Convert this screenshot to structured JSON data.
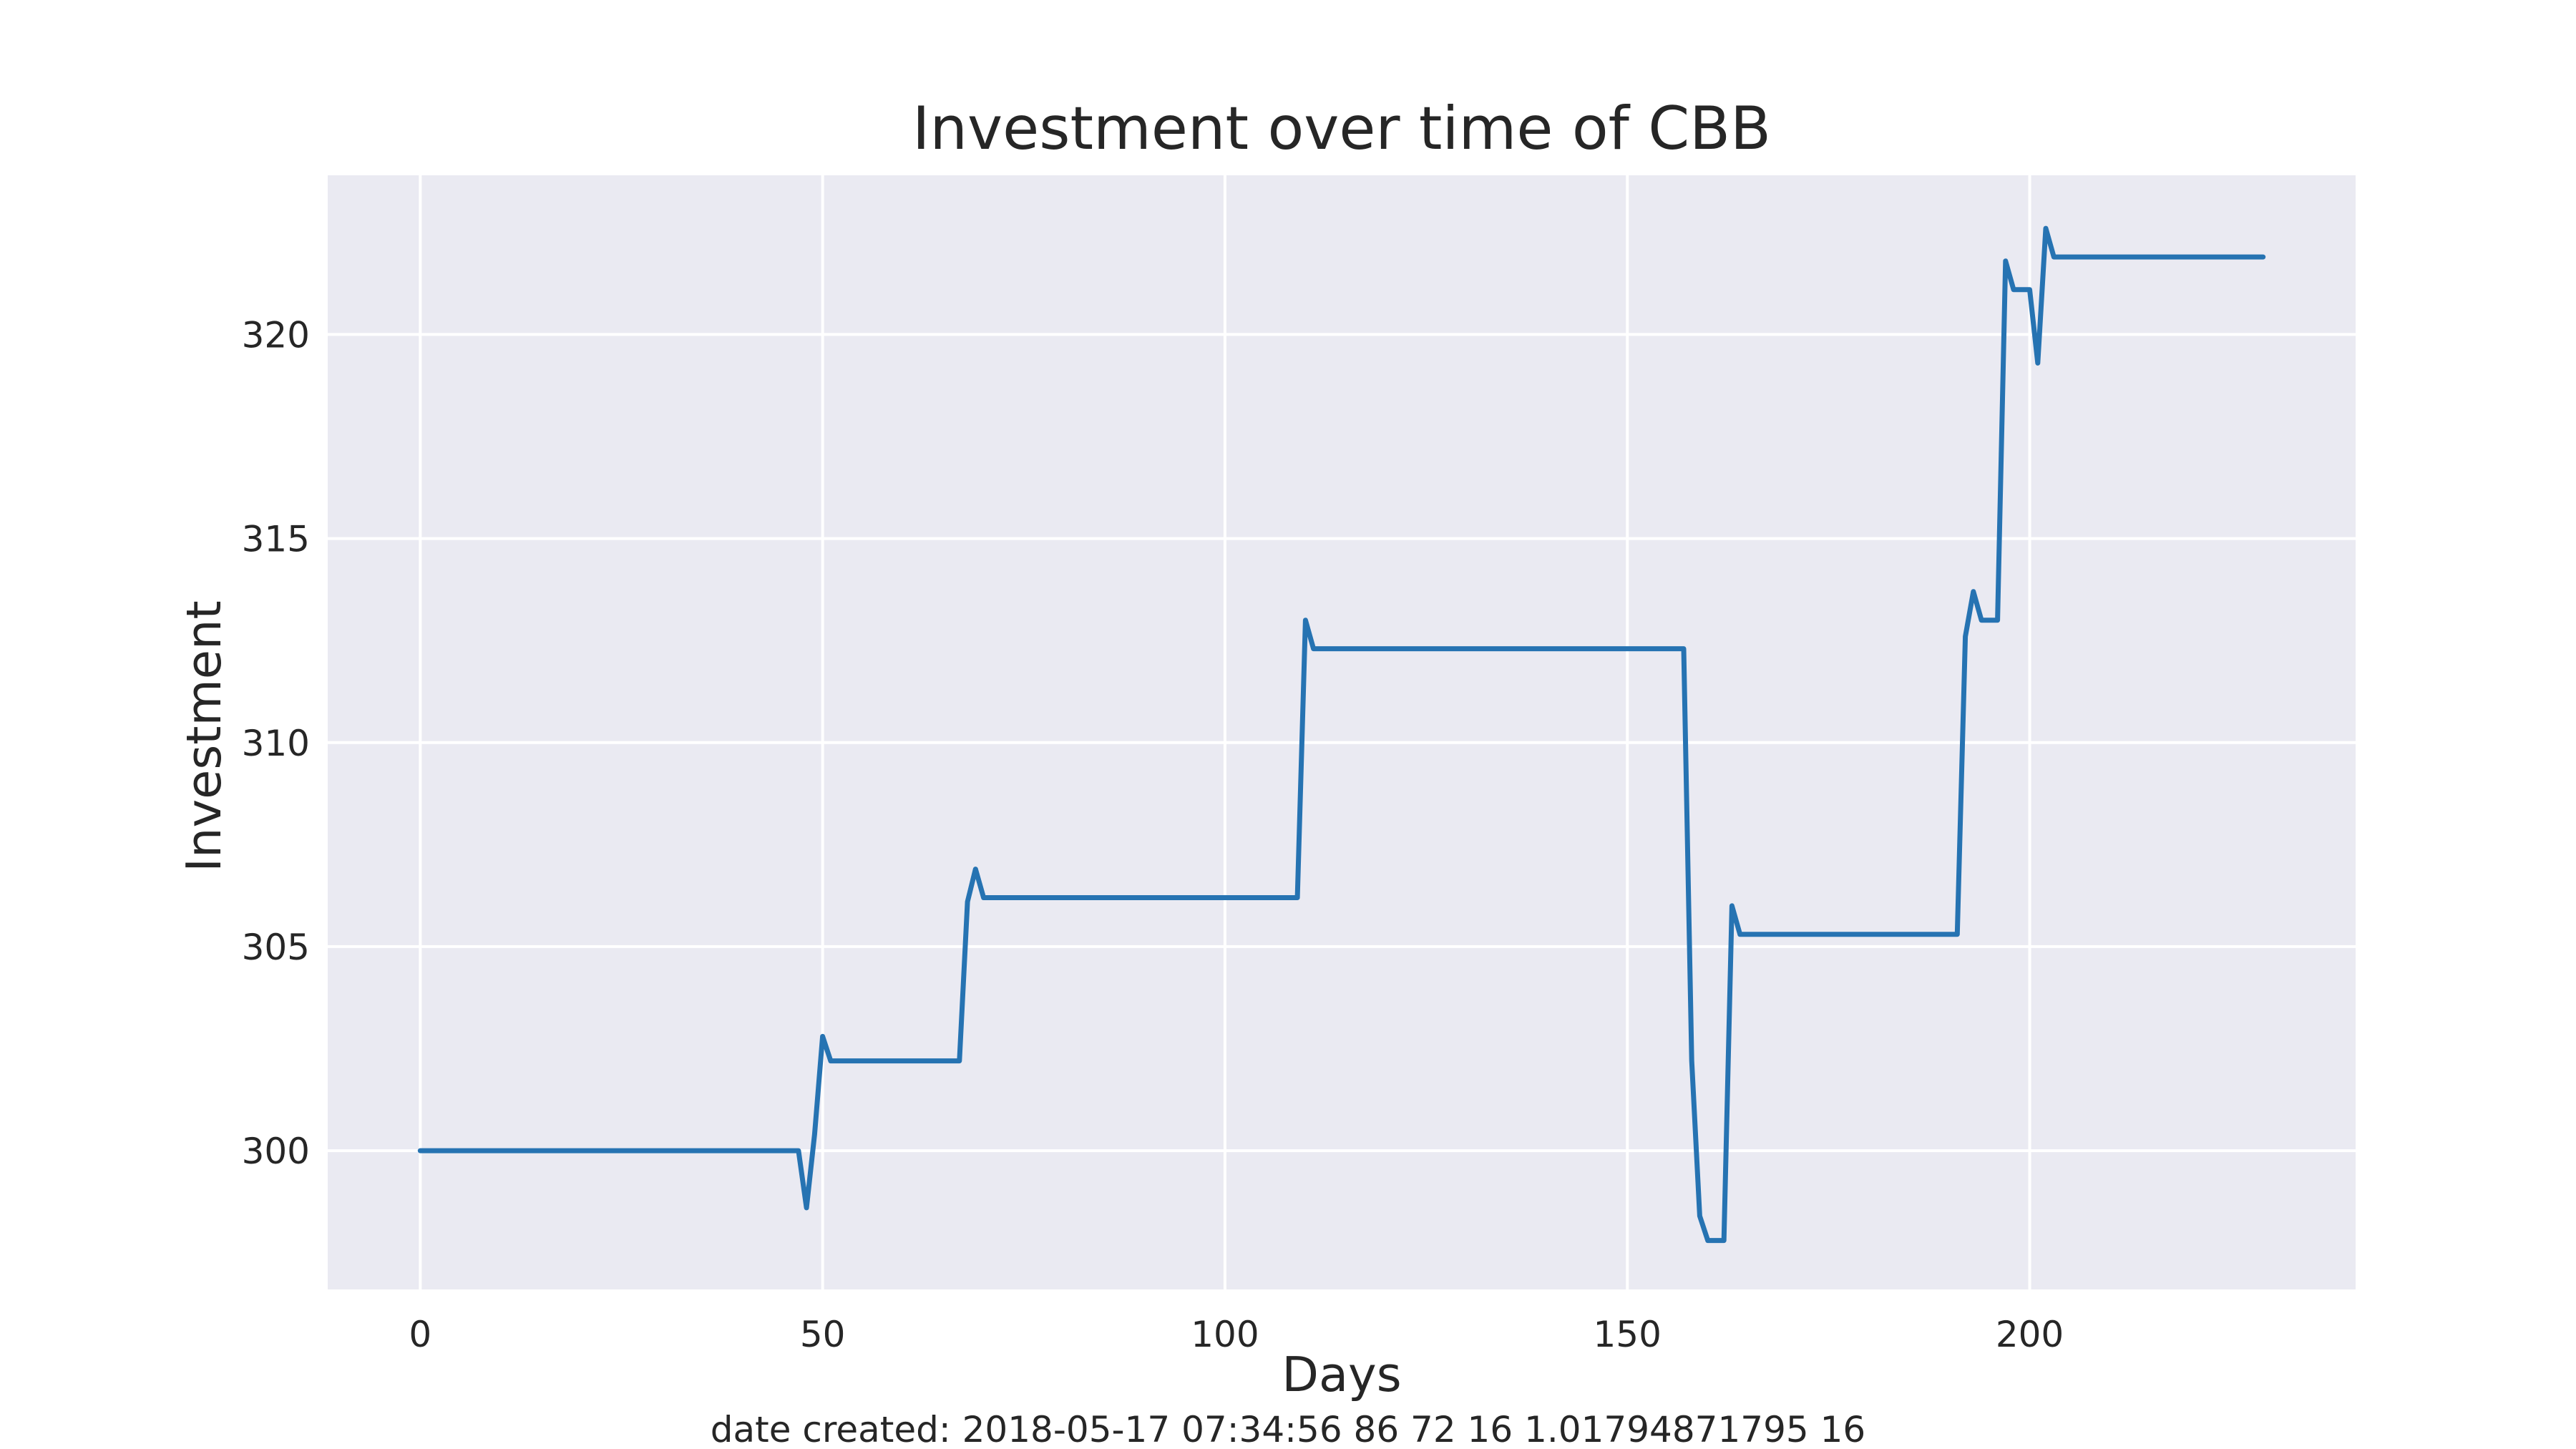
{
  "chart_data": {
    "type": "line",
    "title": "Investment over time of CBB",
    "xlabel": "Days",
    "ylabel": "Investment",
    "footer": "date created: 2018-05-17 07:34:56 86 72 16 1.01794871795 16",
    "xlim": [
      -11.5,
      240.5
    ],
    "ylim": [
      296.6,
      323.9
    ],
    "x_ticks": [
      0,
      50,
      100,
      150,
      200
    ],
    "y_ticks": [
      300,
      305,
      310,
      315,
      320
    ],
    "grid": true,
    "legend": "none",
    "colors": {
      "background": "#eaeaf2",
      "grid": "#ffffff",
      "line": "#2673b2",
      "text": "#262626"
    },
    "series": [
      {
        "x": [
          0,
          47,
          48,
          49,
          50,
          51,
          67,
          68,
          69,
          70,
          109,
          110,
          111,
          157,
          158,
          159,
          160,
          162,
          163,
          164,
          191,
          192,
          193,
          194,
          196,
          197,
          198,
          200,
          201,
          202,
          203,
          229
        ],
        "y": [
          300.0,
          300.0,
          298.6,
          300.4,
          302.8,
          302.2,
          302.2,
          306.1,
          306.9,
          306.2,
          306.2,
          313.0,
          312.3,
          312.3,
          302.2,
          298.4,
          297.8,
          297.8,
          306.0,
          305.3,
          305.3,
          312.6,
          313.7,
          313.0,
          313.0,
          321.8,
          321.1,
          321.1,
          319.3,
          322.6,
          321.9,
          321.9
        ]
      }
    ]
  }
}
